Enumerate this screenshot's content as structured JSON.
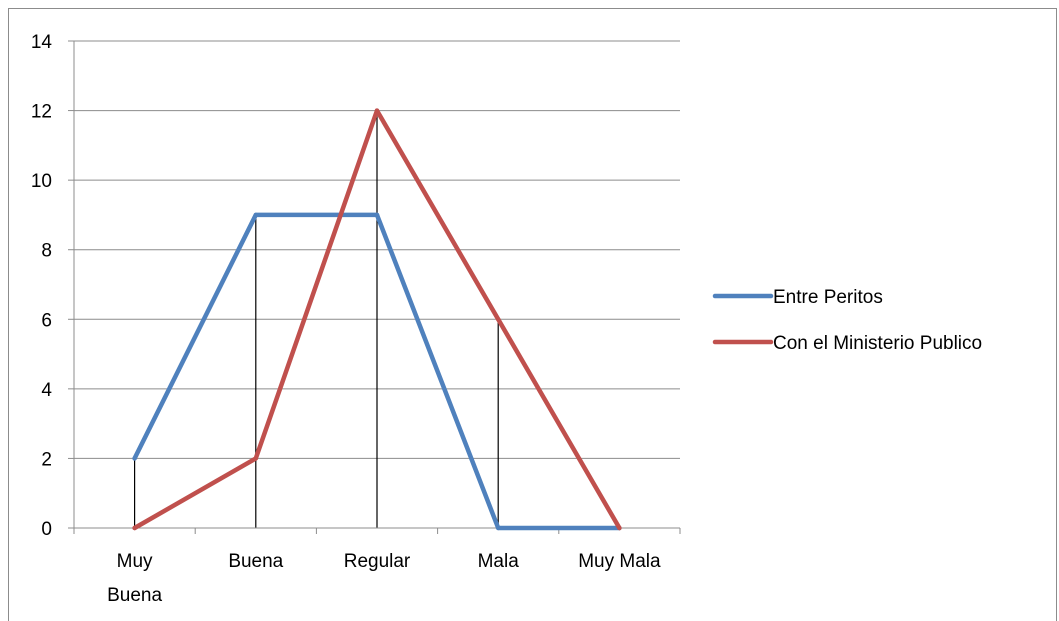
{
  "chart_data": {
    "type": "line",
    "categories": [
      [
        "Muy",
        "Buena"
      ],
      [
        "Buena"
      ],
      [
        "Regular"
      ],
      [
        "Mala"
      ],
      [
        "Muy Mala"
      ]
    ],
    "ylim": [
      0,
      14
    ],
    "y_ticks": [
      "0",
      "2",
      "4",
      "6",
      "8",
      "10",
      "12",
      "14"
    ],
    "y_tick_values": [
      0,
      2,
      4,
      6,
      8,
      10,
      12,
      14
    ],
    "grid": true,
    "drop_lines": true,
    "legend_position": "right",
    "series": [
      {
        "name": "Entre Peritos",
        "color": "#4f81bd",
        "values": [
          2,
          9,
          9,
          0,
          0
        ]
      },
      {
        "name": "Con el Ministerio Publico",
        "color": "#c0504d",
        "values": [
          0,
          2,
          12,
          6,
          0
        ]
      }
    ],
    "title": "",
    "xlabel": "",
    "ylabel": ""
  }
}
